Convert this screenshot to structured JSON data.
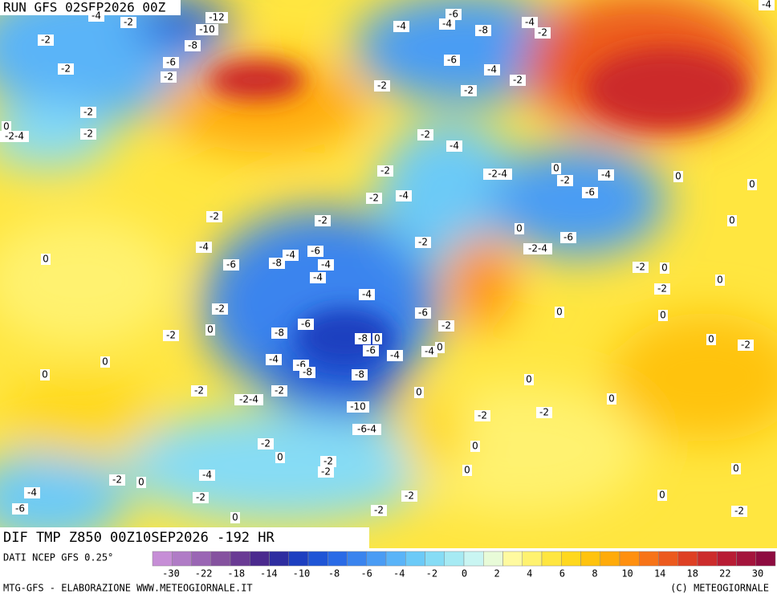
{
  "header": {
    "run": "RUN GFS 02SEP2026 00Z"
  },
  "map_title": "DIF TMP Z850 00Z10SEP2026 -192 HR",
  "map_labels": [
    "-4",
    "-2",
    "-12",
    "-10",
    "-8",
    "-6",
    "-4",
    "-2",
    "-2",
    "-6",
    "-2",
    "-4",
    "-8",
    "-6",
    "-4",
    "-2",
    "-4",
    "-2",
    "-4",
    "-2",
    "-2",
    "-2",
    "-2",
    "-2-4",
    "0",
    "-2",
    "-4",
    "-2",
    "-2-4",
    "0",
    "-2",
    "-4",
    "0",
    "-6",
    "0",
    "-2",
    "-4",
    "-2",
    "-2",
    "0",
    "0",
    "-6",
    "-4",
    "-2",
    "-2-4",
    "0",
    "-6",
    "-8",
    "-4",
    "-6",
    "-4",
    "-2",
    "0",
    "-4",
    "0",
    "-2",
    "-4",
    "-2",
    "-6",
    "0",
    "0",
    "-2",
    "0",
    "-8",
    "-6",
    "-2",
    "-8",
    "0",
    "-6",
    "-4",
    "-4",
    "0",
    "0",
    "-2",
    "0",
    "-4",
    "-6",
    "-8",
    "-8",
    "0",
    "0",
    "-2",
    "-2-4",
    "-2",
    "0",
    "0",
    "-10",
    "-2",
    "-2",
    "-6-4",
    "0",
    "-2",
    "0",
    "-2",
    "-2",
    "0",
    "0",
    "-4",
    "-2",
    "0",
    "-4",
    "-2",
    "-2",
    "0",
    "-6",
    "-2",
    "0",
    "-2"
  ],
  "legend": {
    "source": "DATI NCEP GFS 0.25°",
    "colors": [
      "#c68ed6",
      "#b07cc6",
      "#9a66b4",
      "#85529f",
      "#6a3b94",
      "#4b2a8e",
      "#2e2da0",
      "#1d3fc0",
      "#1f55d6",
      "#2a6be6",
      "#3a84ee",
      "#4a9cf4",
      "#5ab4f8",
      "#6ccaf7",
      "#86dcf5",
      "#a6eaf3",
      "#c9f5f2",
      "#e8fbd8",
      "#fffaa0",
      "#fff270",
      "#ffe640",
      "#ffd81e",
      "#ffc30e",
      "#ffab0a",
      "#ff9010",
      "#f77418",
      "#ec5a1e",
      "#de4024",
      "#cc2c2c",
      "#b81c34",
      "#a4143c",
      "#8e0c40"
    ],
    "ticks": [
      -30,
      -22,
      -18,
      -14,
      -10,
      -8,
      -6,
      -4,
      -2,
      0,
      2,
      4,
      6,
      8,
      10,
      14,
      18,
      22,
      30
    ]
  },
  "footer": {
    "left": "MTG-GFS - ELABORAZIONE WWW.METEOGIORNALE.IT",
    "right": "(C) METEOGIORNALE"
  }
}
